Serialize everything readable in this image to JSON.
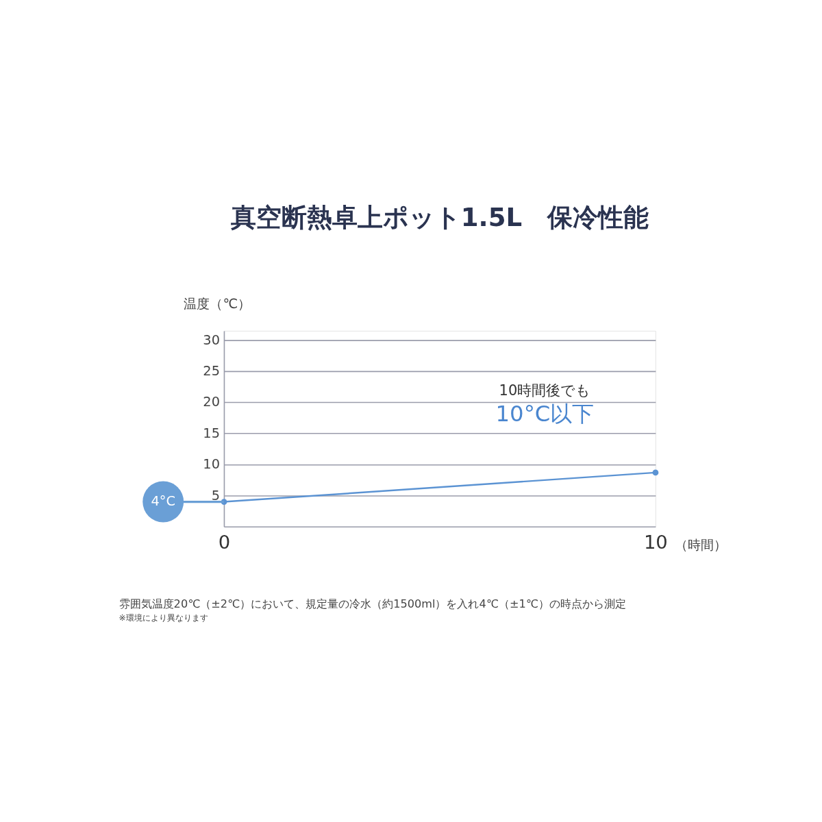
{
  "chart_data": {
    "type": "line",
    "title": "真空断熱卓上ポット1.5L　保冷性能",
    "xlabel": "（時間）",
    "ylabel": "温度（℃）",
    "x": [
      0,
      10
    ],
    "series": [
      {
        "color": "#5b93d3",
        "values": [
          4,
          8.7
        ]
      }
    ],
    "xlim": [
      0,
      10
    ],
    "xticks": [
      0,
      10
    ],
    "ylim": [
      0,
      31.5
    ],
    "yticks": [
      5,
      10,
      15,
      20,
      25,
      30
    ],
    "grid": "y",
    "marker": "circle",
    "line_style": "solid",
    "annotations": [
      "4°C",
      "10時間後でも",
      "10°C以下",
      "雰囲気温度20℃（±2℃）において、規定量の冷水（約1500ml）を入れ4℃（±1℃）の時点から測定",
      "※環境により異なります"
    ]
  }
}
